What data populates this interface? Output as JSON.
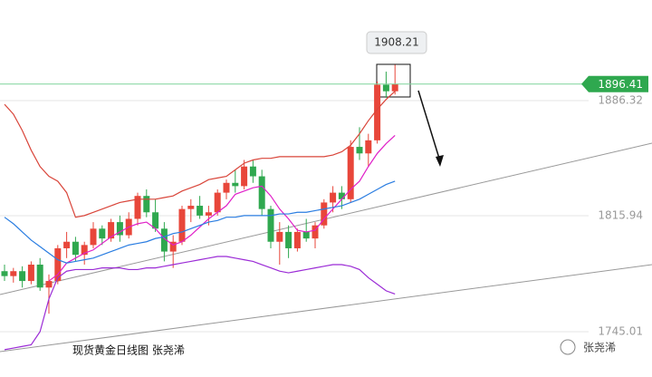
{
  "chart_data": {
    "type": "candlestick",
    "title": "现货黄金日线图 张尧浠",
    "watermark": "张尧浠",
    "ylim": [
      1717.3,
      1947.8
    ],
    "yticks": [
      1886.32,
      1815.94,
      1745.01
    ],
    "last_price": 1896.41,
    "high_label": 1908.21,
    "up_color": "#e8463a",
    "down_color": "#2fa84f",
    "candles": [
      [
        1782,
        1786,
        1776,
        1779
      ],
      [
        1779,
        1784,
        1775,
        1782
      ],
      [
        1782,
        1785,
        1772,
        1776
      ],
      [
        1776,
        1788,
        1774,
        1786
      ],
      [
        1786,
        1790,
        1770,
        1772
      ],
      [
        1772,
        1780,
        1756,
        1776
      ],
      [
        1776,
        1798,
        1774,
        1796
      ],
      [
        1796,
        1806,
        1790,
        1800
      ],
      [
        1800,
        1803,
        1788,
        1792
      ],
      [
        1792,
        1800,
        1786,
        1798
      ],
      [
        1798,
        1812,
        1796,
        1808
      ],
      [
        1808,
        1810,
        1798,
        1802
      ],
      [
        1802,
        1814,
        1800,
        1812
      ],
      [
        1812,
        1816,
        1800,
        1804
      ],
      [
        1804,
        1818,
        1802,
        1814
      ],
      [
        1814,
        1830,
        1810,
        1828
      ],
      [
        1828,
        1832,
        1815,
        1818
      ],
      [
        1818,
        1826,
        1806,
        1808
      ],
      [
        1808,
        1812,
        1788,
        1794
      ],
      [
        1794,
        1804,
        1784,
        1800
      ],
      [
        1800,
        1822,
        1798,
        1820
      ],
      [
        1820,
        1826,
        1812,
        1822
      ],
      [
        1822,
        1828,
        1814,
        1816
      ],
      [
        1816,
        1822,
        1810,
        1818
      ],
      [
        1818,
        1832,
        1816,
        1830
      ],
      [
        1830,
        1838,
        1826,
        1836
      ],
      [
        1836,
        1844,
        1830,
        1834
      ],
      [
        1834,
        1850,
        1832,
        1846
      ],
      [
        1846,
        1850,
        1836,
        1840
      ],
      [
        1840,
        1844,
        1816,
        1820
      ],
      [
        1820,
        1822,
        1796,
        1800
      ],
      [
        1800,
        1812,
        1786,
        1806
      ],
      [
        1806,
        1810,
        1790,
        1796
      ],
      [
        1796,
        1808,
        1794,
        1806
      ],
      [
        1806,
        1814,
        1800,
        1802
      ],
      [
        1802,
        1812,
        1796,
        1810
      ],
      [
        1810,
        1826,
        1808,
        1824
      ],
      [
        1824,
        1834,
        1818,
        1830
      ],
      [
        1830,
        1834,
        1820,
        1826
      ],
      [
        1826,
        1862,
        1824,
        1858
      ],
      [
        1858,
        1870,
        1850,
        1854
      ],
      [
        1854,
        1866,
        1846,
        1862
      ],
      [
        1862,
        1898,
        1860,
        1896
      ],
      [
        1896,
        1904,
        1888,
        1892
      ],
      [
        1892,
        1908.21,
        1890,
        1896.41
      ]
    ],
    "series": [
      {
        "color": "#d9453a",
        "values": [
          1884,
          1878,
          1868,
          1856,
          1846,
          1840,
          1837,
          1830,
          1815,
          1816,
          1818,
          1820,
          1822,
          1824,
          1825,
          1826,
          1826,
          1826,
          1827,
          1828,
          1831,
          1833,
          1835,
          1838,
          1839,
          1840,
          1844,
          1848,
          1850,
          1851,
          1851,
          1852,
          1852,
          1852,
          1852,
          1852,
          1852,
          1853,
          1855,
          1859,
          1866,
          1874,
          1881,
          1887,
          1892
        ]
      },
      {
        "color": "#e020c8",
        "values": [
          null,
          null,
          null,
          null,
          null,
          1776,
          1780,
          1787,
          1790,
          1793,
          1795,
          1799,
          1803,
          1806,
          1809,
          1811,
          1812,
          1808,
          1802,
          1798,
          1800,
          1804,
          1809,
          1814,
          1818,
          1822,
          1829,
          1831,
          1833,
          1834,
          1828,
          1820,
          1814,
          1807,
          1806,
          1807,
          1814,
          1820,
          1826,
          1832,
          1837,
          1846,
          1854,
          1860,
          1865
        ]
      },
      {
        "color": "#2a7de1",
        "values": [
          1815,
          1811,
          1806,
          1801,
          1797,
          1793,
          1789,
          1787,
          1788,
          1789,
          1790,
          1792,
          1794,
          1796,
          1798,
          1799,
          1800,
          1802,
          1803,
          1805,
          1806,
          1808,
          1810,
          1812,
          1813,
          1815,
          1815,
          1816,
          1816,
          1816,
          1816,
          1817,
          1817,
          1818,
          1818,
          1819,
          1820,
          1821,
          1822,
          1824,
          1826,
          1829,
          1832,
          1835,
          1837
        ]
      },
      {
        "color": "#9b2bd6",
        "values": [
          1734,
          1735,
          1736,
          1737,
          1745,
          1765,
          1778,
          1782,
          1783,
          1783,
          1783,
          1784,
          1784,
          1784,
          1783,
          1783,
          1784,
          1784,
          1785,
          1786,
          1787,
          1788,
          1789,
          1790,
          1791,
          1791,
          1790,
          1789,
          1788,
          1786,
          1784,
          1782,
          1781,
          1782,
          1783,
          1784,
          1785,
          1786,
          1786,
          1785,
          1783,
          1778,
          1774,
          1770,
          1768
        ]
      }
    ]
  }
}
